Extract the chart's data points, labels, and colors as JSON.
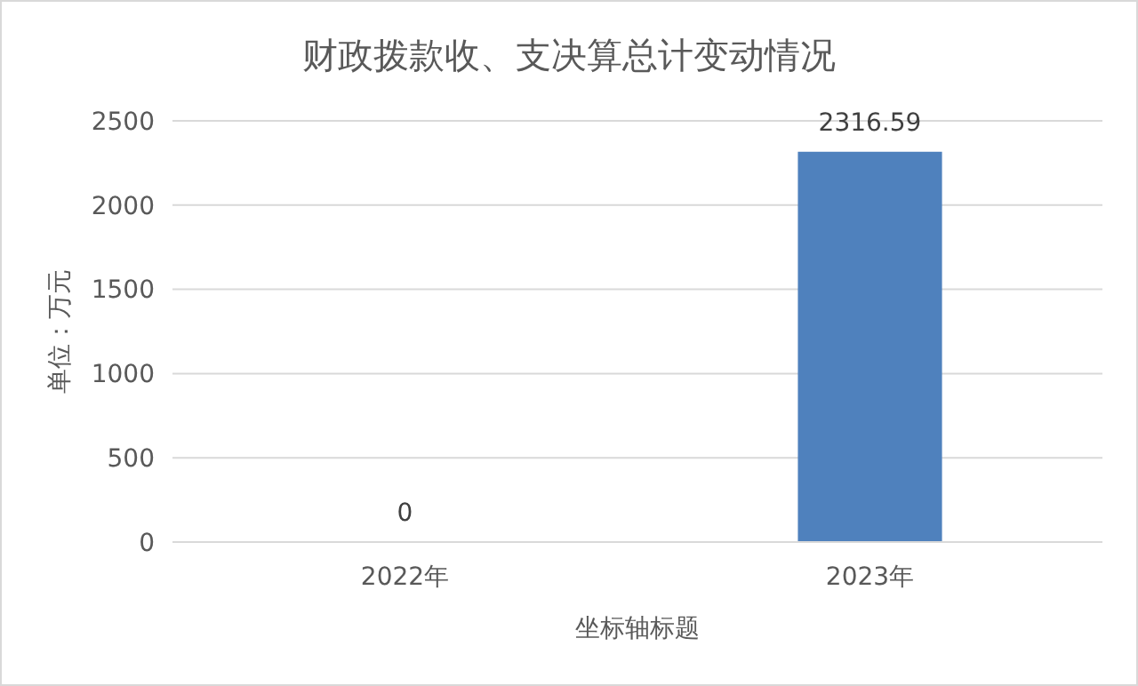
{
  "chart_data": {
    "type": "bar",
    "title": "财政拨款收、支决算总计变动情况",
    "xlabel": "坐标轴标题",
    "ylabel": "单位：万元",
    "categories": [
      "2022年",
      "2023年"
    ],
    "values": [
      0,
      2316.59
    ],
    "color": "#4f81bd",
    "ylim": [
      0,
      2500
    ],
    "yticks": [
      0,
      500,
      1000,
      1500,
      2000,
      2500
    ],
    "grid": "y",
    "data_labels": true
  }
}
